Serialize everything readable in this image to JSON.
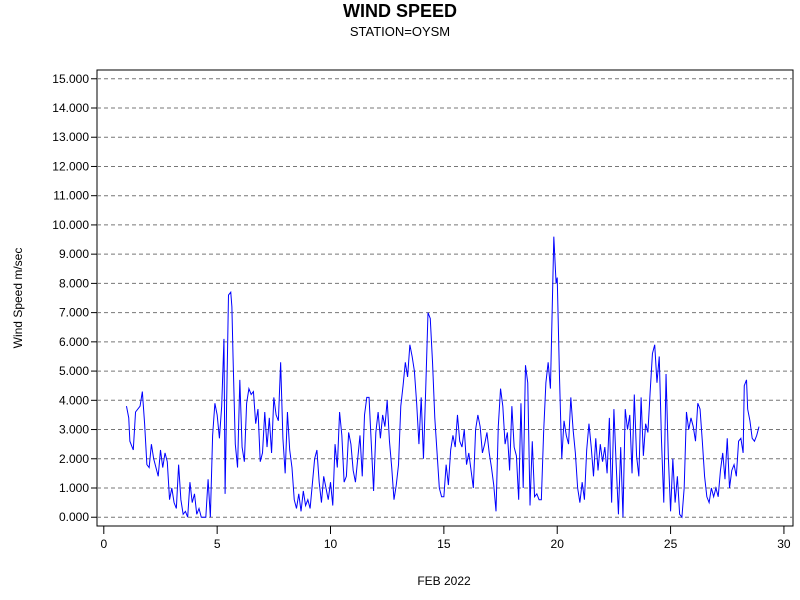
{
  "chart_data": {
    "type": "line",
    "title": "WIND SPEED",
    "subtitle": "STATION=OYSM",
    "x_label": "FEB 2022",
    "y_label": "Wind Speed m/sec",
    "color": "#0000ff",
    "grid": true,
    "xlim": [
      -0.3,
      30.4
    ],
    "ylim": [
      -0.3,
      15.3
    ],
    "xticks": [
      0,
      5,
      10,
      15,
      20,
      25,
      30
    ],
    "yticks": [
      {
        "value": 0,
        "label": "0.000"
      },
      {
        "value": 1,
        "label": "1.000"
      },
      {
        "value": 2,
        "label": "2.000"
      },
      {
        "value": 3,
        "label": "3.000"
      },
      {
        "value": 4,
        "label": "4.000"
      },
      {
        "value": 5,
        "label": "5.000"
      },
      {
        "value": 6,
        "label": "6.000"
      },
      {
        "value": 7,
        "label": "7.000"
      },
      {
        "value": 8,
        "label": "8.000"
      },
      {
        "value": 9,
        "label": "9.000"
      },
      {
        "value": 10,
        "label": "10.000"
      },
      {
        "value": 11,
        "label": "11.000"
      },
      {
        "value": 12,
        "label": "12.000"
      },
      {
        "value": 13,
        "label": "13.000"
      },
      {
        "value": 14,
        "label": "14.000"
      },
      {
        "value": 15,
        "label": "15.000"
      }
    ],
    "x": [
      1.0,
      1.1,
      1.15,
      1.3,
      1.4,
      1.6,
      1.7,
      1.8,
      1.9,
      2.0,
      2.1,
      2.2,
      2.3,
      2.4,
      2.5,
      2.6,
      2.7,
      2.8,
      2.9,
      3.0,
      3.1,
      3.2,
      3.3,
      3.4,
      3.5,
      3.6,
      3.7,
      3.8,
      3.9,
      4.0,
      4.1,
      4.2,
      4.3,
      4.5,
      4.6,
      4.7,
      4.8,
      4.9,
      5.0,
      5.1,
      5.2,
      5.3,
      5.35,
      5.5,
      5.6,
      5.65,
      5.7,
      5.8,
      5.9,
      6.0,
      6.1,
      6.2,
      6.3,
      6.4,
      6.5,
      6.6,
      6.7,
      6.8,
      6.9,
      7.0,
      7.1,
      7.2,
      7.3,
      7.4,
      7.5,
      7.6,
      7.7,
      7.8,
      7.9,
      8.0,
      8.1,
      8.2,
      8.3,
      8.4,
      8.5,
      8.6,
      8.7,
      8.8,
      8.9,
      9.0,
      9.1,
      9.3,
      9.4,
      9.5,
      9.6,
      9.7,
      9.8,
      9.9,
      10.0,
      10.1,
      10.2,
      10.3,
      10.4,
      10.5,
      10.6,
      10.7,
      10.8,
      10.9,
      11.0,
      11.1,
      11.2,
      11.3,
      11.4,
      11.5,
      11.6,
      11.7,
      11.8,
      11.9,
      12.0,
      12.1,
      12.2,
      12.3,
      12.4,
      12.5,
      12.6,
      12.7,
      12.8,
      12.9,
      13.0,
      13.1,
      13.2,
      13.3,
      13.4,
      13.5,
      13.6,
      13.7,
      13.8,
      13.9,
      14.0,
      14.1,
      14.2,
      14.3,
      14.4,
      14.5,
      14.6,
      14.7,
      14.8,
      14.9,
      15.0,
      15.1,
      15.2,
      15.3,
      15.4,
      15.5,
      15.6,
      15.7,
      15.8,
      15.9,
      16.0,
      16.1,
      16.2,
      16.3,
      16.4,
      16.5,
      16.6,
      16.7,
      16.8,
      16.9,
      17.0,
      17.1,
      17.2,
      17.3,
      17.4,
      17.5,
      17.6,
      17.7,
      17.8,
      17.9,
      18.0,
      18.1,
      18.2,
      18.3,
      18.4,
      18.5,
      18.6,
      18.7,
      18.8,
      18.9,
      19.0,
      19.1,
      19.2,
      19.3,
      19.4,
      19.5,
      19.6,
      19.7,
      19.75,
      19.85,
      19.95,
      20.0,
      20.1,
      20.2,
      20.3,
      20.4,
      20.5,
      20.6,
      20.7,
      20.8,
      20.9,
      21.0,
      21.1,
      21.2,
      21.3,
      21.4,
      21.5,
      21.6,
      21.7,
      21.8,
      21.9,
      22.0,
      22.1,
      22.2,
      22.3,
      22.4,
      22.5,
      22.6,
      22.7,
      22.8,
      22.9,
      23.0,
      23.1,
      23.2,
      23.3,
      23.4,
      23.5,
      23.6,
      23.7,
      23.8,
      23.9,
      24.0,
      24.1,
      24.2,
      24.3,
      24.4,
      24.5,
      24.6,
      24.7,
      24.8,
      24.9,
      25.0,
      25.1,
      25.2,
      25.3,
      25.4,
      25.5,
      25.6,
      25.7,
      25.8,
      25.9,
      26.0,
      26.1,
      26.2,
      26.3,
      26.4,
      26.5,
      26.6,
      26.7,
      26.8,
      26.9,
      27.0,
      27.1,
      27.2,
      27.3,
      27.4,
      27.5,
      27.6,
      27.7,
      27.8,
      27.9,
      28.0,
      28.1,
      28.2,
      28.25,
      28.35,
      28.4,
      28.5,
      28.6,
      28.7,
      28.8,
      28.9
    ],
    "values": [
      3.8,
      3.4,
      2.6,
      2.3,
      3.6,
      3.8,
      4.3,
      3.2,
      1.8,
      1.7,
      2.5,
      2.0,
      1.7,
      1.4,
      2.3,
      1.7,
      2.2,
      1.9,
      0.6,
      1.0,
      0.5,
      0.3,
      1.8,
      0.6,
      0.1,
      0.2,
      0.0,
      1.2,
      0.5,
      0.8,
      0.1,
      0.3,
      0.0,
      0.0,
      1.3,
      0.0,
      2.8,
      3.9,
      3.5,
      2.7,
      3.8,
      6.1,
      0.8,
      7.6,
      7.7,
      7.2,
      5.5,
      2.5,
      1.7,
      4.7,
      2.4,
      1.9,
      3.9,
      4.4,
      4.2,
      4.3,
      3.2,
      3.7,
      1.9,
      2.2,
      3.6,
      2.4,
      3.4,
      2.2,
      4.1,
      3.5,
      3.3,
      5.3,
      2.7,
      1.5,
      3.6,
      2.3,
      1.7,
      0.6,
      0.3,
      0.8,
      0.2,
      0.9,
      0.4,
      0.6,
      0.3,
      2.0,
      2.3,
      1.2,
      0.5,
      1.4,
      1.0,
      0.6,
      1.2,
      0.4,
      2.5,
      1.7,
      3.6,
      2.8,
      1.2,
      1.4,
      2.9,
      2.5,
      1.6,
      1.2,
      2.0,
      2.8,
      1.4,
      3.5,
      4.1,
      4.1,
      2.5,
      0.9,
      2.9,
      3.6,
      2.7,
      3.5,
      3.1,
      4.0,
      2.6,
      1.7,
      0.6,
      1.1,
      1.8,
      3.8,
      4.5,
      5.3,
      4.8,
      5.9,
      5.5,
      5.0,
      3.9,
      2.5,
      4.1,
      2.0,
      4.4,
      7.0,
      6.8,
      5.3,
      3.4,
      2.2,
      1.0,
      0.7,
      0.7,
      1.8,
      1.1,
      2.3,
      2.8,
      2.4,
      3.5,
      2.6,
      2.4,
      3.0,
      1.8,
      2.2,
      1.6,
      1.0,
      3.0,
      3.5,
      3.1,
      2.2,
      2.5,
      2.9,
      2.2,
      1.7,
      1.1,
      0.2,
      3.1,
      4.4,
      3.8,
      2.5,
      2.9,
      1.6,
      3.8,
      2.4,
      2.1,
      0.6,
      3.9,
      1.0,
      5.2,
      4.6,
      0.4,
      2.6,
      0.7,
      0.8,
      0.6,
      0.6,
      2.9,
      4.6,
      5.3,
      4.4,
      6.1,
      9.6,
      8.0,
      8.2,
      4.8,
      2.0,
      3.3,
      2.8,
      2.5,
      4.1,
      3.0,
      2.2,
      1.0,
      0.5,
      1.2,
      0.6,
      2.3,
      3.2,
      2.4,
      1.4,
      2.7,
      1.6,
      2.5,
      1.9,
      2.4,
      1.5,
      3.4,
      0.5,
      3.7,
      1.8,
      0.1,
      2.4,
      0.0,
      3.7,
      3.0,
      3.5,
      1.5,
      4.2,
      2.1,
      1.4,
      4.1,
      2.1,
      3.2,
      2.9,
      4.3,
      5.6,
      5.9,
      4.6,
      5.5,
      2.6,
      0.5,
      4.9,
      2.1,
      0.2,
      2.0,
      0.5,
      1.4,
      0.1,
      0.0,
      1.0,
      3.6,
      3.0,
      3.4,
      3.1,
      2.6,
      3.9,
      3.7,
      2.6,
      1.4,
      0.7,
      0.5,
      1.0,
      0.7,
      1.0,
      0.7,
      1.6,
      2.2,
      1.3,
      2.7,
      1.0,
      1.6,
      1.8,
      1.4,
      2.6,
      2.7,
      2.2,
      4.5,
      4.7,
      3.7,
      3.3,
      2.7,
      2.6,
      2.8,
      3.1
    ]
  }
}
